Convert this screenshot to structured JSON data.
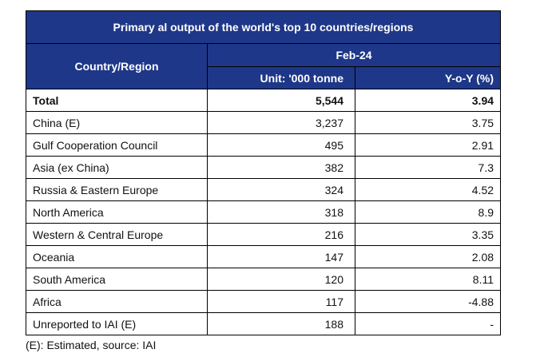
{
  "table": {
    "title": "Primary al output of the world's top 10 countries/regions",
    "col_country": "Country/Region",
    "col_period": "Feb-24",
    "col_unit": "Unit: '000 tonne",
    "col_yoy": "Y-o-Y (%)",
    "total": {
      "name": "Total",
      "value": "5,544",
      "yoy": "3.94"
    },
    "rows": [
      {
        "name": "China (E)",
        "value": "3,237",
        "yoy": "3.75"
      },
      {
        "name": "Gulf Cooperation Council",
        "value": "495",
        "yoy": "2.91"
      },
      {
        "name": "Asia (ex China)",
        "value": "382",
        "yoy": "7.3"
      },
      {
        "name": "Russia & Eastern Europe",
        "value": "324",
        "yoy": "4.52"
      },
      {
        "name": "North America",
        "value": "318",
        "yoy": "8.9"
      },
      {
        "name": "Western & Central Europe",
        "value": "216",
        "yoy": "3.35"
      },
      {
        "name": "Oceania",
        "value": "147",
        "yoy": "2.08"
      },
      {
        "name": "South America",
        "value": "120",
        "yoy": "8.11"
      },
      {
        "name": "Africa",
        "value": "117",
        "yoy": "-4.88"
      },
      {
        "name": "Unreported to IAI (E)",
        "value": "188",
        "yoy": "-"
      }
    ]
  },
  "footnote": "(E): Estimated, source: IAI",
  "colors": {
    "header_bg": "#1e3788",
    "header_text": "#ffffff"
  }
}
